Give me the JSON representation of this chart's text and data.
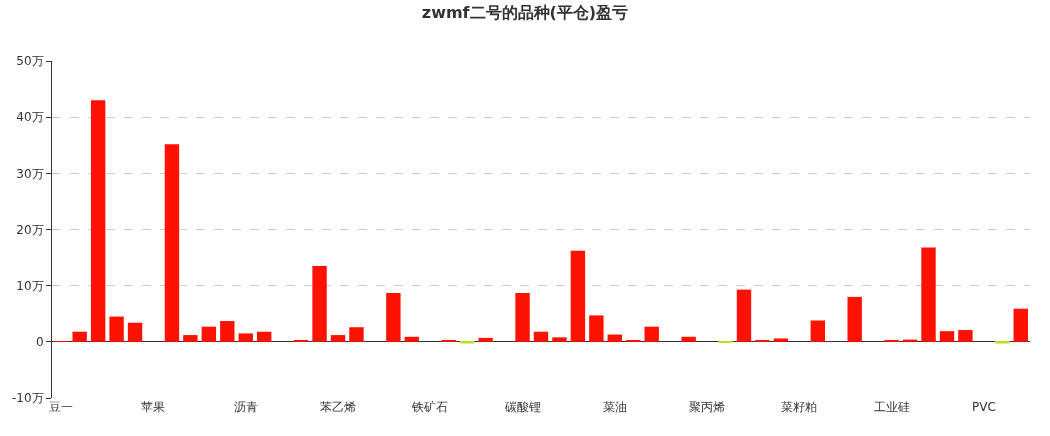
{
  "chart_data": {
    "type": "bar",
    "title": "zwmf二号的品种(平仓)盈亏",
    "categories": [
      "豆一",
      null,
      null,
      null,
      null,
      "苹果",
      null,
      null,
      null,
      null,
      "沥青",
      null,
      null,
      null,
      null,
      "苯乙烯",
      null,
      null,
      null,
      null,
      "铁矿石",
      null,
      null,
      null,
      null,
      "碳酸锂",
      null,
      null,
      null,
      null,
      "菜油",
      null,
      null,
      null,
      null,
      "聚丙烯",
      null,
      null,
      null,
      null,
      "菜籽粕",
      null,
      null,
      null,
      null,
      "工业硅",
      null,
      null,
      null,
      null,
      "PVC",
      null,
      null
    ],
    "values": [
      0.1,
      1.8,
      43,
      4.5,
      3.4,
      null,
      35.2,
      1.2,
      2.7,
      3.7,
      1.5,
      1.8,
      null,
      0.2,
      13.5,
      1.2,
      2.6,
      null,
      8.7,
      0.9,
      null,
      0.2,
      -0.3,
      0.7,
      null,
      8.7,
      1.8,
      0.8,
      16.2,
      4.7,
      1.3,
      0.3,
      2.7,
      null,
      0.9,
      null,
      -0.1,
      9.3,
      0.2,
      0.6,
      null,
      3.8,
      null,
      8.0,
      null,
      0.3,
      0.4,
      16.8,
      1.9,
      2.1,
      null,
      -0.3,
      5.9
    ],
    "colors": [
      "#ff1100",
      "#ff1100",
      "#ff1100",
      "#ff1100",
      "#ff1100",
      "#ff1100",
      "#ff1100",
      "#ff1100",
      "#ff1100",
      "#ff1100",
      "#ff1100",
      "#ff1100",
      "#ff1100",
      "#ff1100",
      "#ff1100",
      "#ff1100",
      "#ff1100",
      "#ff1100",
      "#ff1100",
      "#ff1100",
      "#ff1100",
      "#ff1100",
      "#b5e61d",
      "#ff1100",
      "#ff1100",
      "#ff1100",
      "#ff1100",
      "#ff1100",
      "#ff1100",
      "#ff1100",
      "#ff1100",
      "#ff1100",
      "#ff1100",
      "#ff1100",
      "#ff1100",
      "#ff1100",
      "#b5e61d",
      "#ff1100",
      "#ff1100",
      "#ff1100",
      "#ff1100",
      "#ff1100",
      "#ff1100",
      "#ff1100",
      "#ff1100",
      "#ff1100",
      "#ff1100",
      "#ff1100",
      "#ff1100",
      "#ff1100",
      "#ff1100",
      "#b5e61d",
      "#ff1100"
    ],
    "ylim": [
      -10,
      50
    ],
    "yticks": [
      {
        "value": -10,
        "label": "-10万"
      },
      {
        "value": 0,
        "label": "0"
      },
      {
        "value": 10,
        "label": "10万"
      },
      {
        "value": 20,
        "label": "20万"
      },
      {
        "value": 30,
        "label": "30万"
      },
      {
        "value": 40,
        "label": "40万"
      },
      {
        "value": 50,
        "label": "50万"
      }
    ],
    "grid": "y"
  }
}
